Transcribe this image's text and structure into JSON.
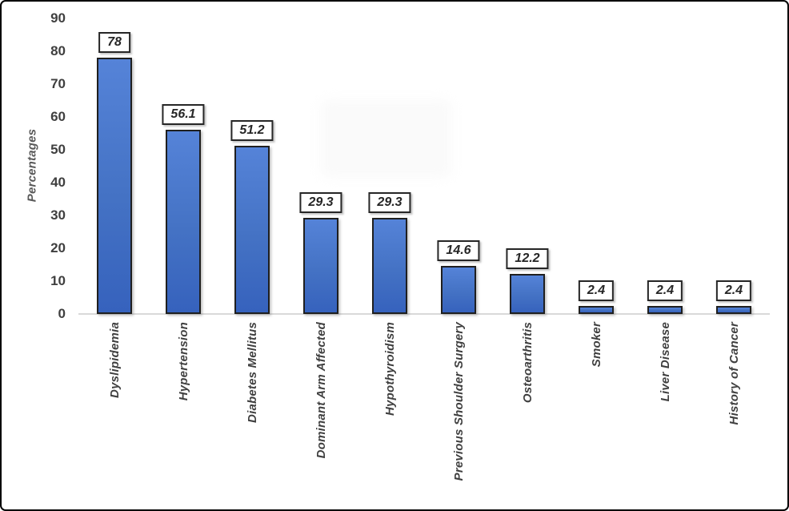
{
  "chart_data": {
    "type": "bar",
    "title": "",
    "xlabel": "",
    "ylabel": "Percentages",
    "ylim": [
      0,
      90
    ],
    "yticks": [
      0,
      10,
      20,
      30,
      40,
      50,
      60,
      70,
      80,
      90
    ],
    "grid": false,
    "legend": null,
    "categories": [
      "Dyslipidemia",
      "Hypertension",
      "Diabetes Mellitus",
      "Dominant Arm Affected",
      "Hypothyroidism",
      "Previous Shoulder Surgery",
      "Osteoarthritis",
      "Smoker",
      "Liver Disease",
      "History of Cancer"
    ],
    "values": [
      78,
      56.1,
      51.2,
      29.3,
      29.3,
      14.6,
      12.2,
      2.4,
      2.4,
      2.4
    ],
    "value_labels": [
      "78",
      "56.1",
      "51.2",
      "29.3",
      "29.3",
      "14.6",
      "12.2",
      "2.4",
      "2.4",
      "2.4"
    ],
    "colors": {
      "bar_fill_top": "#5583d8",
      "bar_fill": "#4472c4",
      "bar_fill_bottom": "#3662bd",
      "bar_border": "#1f1f1f",
      "value_box_border": "#262626",
      "value_text": "#262626",
      "tick_text": "#3f3f3f",
      "category_text": "#3f3f3f",
      "ylabel_text": "#595959",
      "axis_line": "#d9d9d9",
      "frame_border": "#000000",
      "background": "#ffffff"
    }
  }
}
